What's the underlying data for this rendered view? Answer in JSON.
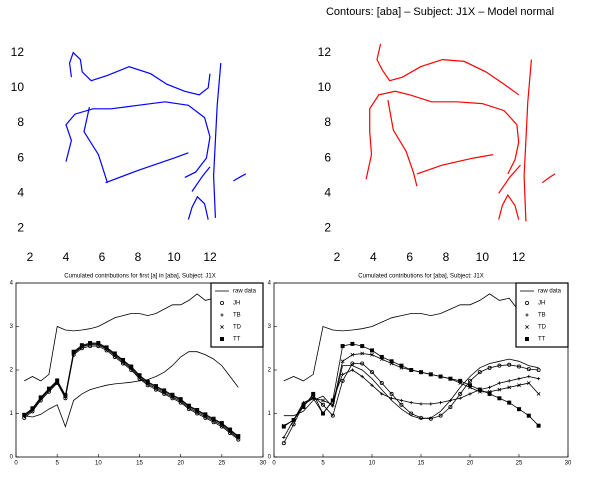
{
  "chart_data": [
    {
      "type": "line",
      "xlim": [
        2,
        14
      ],
      "ylim": [
        1,
        13
      ],
      "xticks": [
        2,
        4,
        6,
        8,
        10,
        12
      ],
      "yticks": [
        2,
        4,
        6,
        8,
        10,
        12
      ],
      "series": [
        {
          "color": "#0000ff",
          "x": [
            4.3,
            4.2,
            4.4,
            4.8,
            4.9,
            5.4,
            6.3,
            7.5,
            8.7,
            9.6,
            10.6,
            11.4,
            11.9,
            12.0
          ],
          "values": [
            10.6,
            11.4,
            12.0,
            11.6,
            10.9,
            10.4,
            10.7,
            11.2,
            10.8,
            10.2,
            9.8,
            9.6,
            10.0,
            10.8
          ]
        },
        {
          "color": "#0000ff",
          "x": [
            4.0,
            4.3,
            4.0,
            4.5,
            5.5,
            6.5,
            8.0,
            9.5,
            10.8,
            11.7,
            12.0,
            11.8,
            11.2,
            10.6
          ],
          "values": [
            5.8,
            7.0,
            7.9,
            8.5,
            8.8,
            8.8,
            9.0,
            9.2,
            9.0,
            8.3,
            7.2,
            6.0,
            5.2,
            4.9
          ]
        },
        {
          "color": "#0000ff",
          "x": [
            6.2,
            8.0,
            10.0,
            10.8
          ],
          "values": [
            4.6,
            5.3,
            6.0,
            6.3
          ]
        },
        {
          "color": "#0000ff",
          "x": [
            5.3,
            5.0,
            5.8,
            6.3
          ],
          "values": [
            8.9,
            7.5,
            6.2,
            4.6
          ]
        },
        {
          "color": "#0000ff",
          "x": [
            12.6,
            12.4,
            12.3,
            12.2,
            12.3
          ],
          "values": [
            11.4,
            9.0,
            7.0,
            5.0,
            2.6
          ]
        },
        {
          "color": "#0000ff",
          "x": [
            10.8,
            11.0,
            11.3,
            11.7,
            11.9
          ],
          "values": [
            2.5,
            3.2,
            3.8,
            3.4,
            2.5
          ]
        },
        {
          "color": "#0000ff",
          "x": [
            11.0,
            11.6,
            12.0
          ],
          "values": [
            4.1,
            5.0,
            5.5
          ]
        },
        {
          "color": "#0000ff",
          "x": [
            13.3,
            13.8,
            14.0
          ],
          "values": [
            4.7,
            5.0,
            5.1
          ]
        }
      ]
    },
    {
      "type": "line",
      "title": "Contours: [aba] – Subject: J1X – Model normal",
      "xlim": [
        2,
        14
      ],
      "ylim": [
        1,
        13
      ],
      "xticks": [
        2,
        4,
        6,
        8,
        10,
        12
      ],
      "yticks": [
        2,
        4,
        6,
        8,
        10,
        12
      ],
      "series": [
        {
          "color": "#ff0000",
          "x": [
            4.4,
            4.2,
            4.5,
            4.9,
            5.6,
            6.6,
            7.8,
            9.0,
            10.2,
            11.2,
            12.0
          ],
          "values": [
            12.5,
            11.6,
            11.0,
            10.4,
            10.6,
            11.2,
            11.6,
            11.5,
            10.9,
            10.2,
            9.6
          ]
        },
        {
          "color": "#ff0000",
          "x": [
            3.6,
            3.9,
            3.8,
            3.8,
            4.3,
            5.2,
            6.0,
            7.2,
            8.6,
            10.0,
            11.2,
            11.9,
            12.0,
            11.8,
            11.4
          ],
          "values": [
            4.8,
            6.2,
            7.5,
            8.8,
            9.6,
            9.8,
            9.6,
            9.2,
            9.2,
            9.1,
            8.7,
            7.9,
            6.9,
            5.9,
            5.1
          ]
        },
        {
          "color": "#ff0000",
          "x": [
            6.4,
            7.8,
            9.5,
            10.6
          ],
          "values": [
            5.1,
            5.6,
            6.0,
            6.2
          ]
        },
        {
          "color": "#ff0000",
          "x": [
            4.8,
            5.1,
            5.8,
            6.2,
            6.4
          ],
          "values": [
            9.3,
            7.6,
            6.4,
            5.2,
            4.4
          ]
        },
        {
          "color": "#ff0000",
          "x": [
            12.7,
            12.5,
            12.4,
            12.3,
            12.4
          ],
          "values": [
            11.6,
            9.2,
            7.0,
            5.0,
            2.4
          ]
        },
        {
          "color": "#ff0000",
          "x": [
            10.9,
            11.1,
            11.4,
            11.8,
            12.0
          ],
          "values": [
            2.5,
            3.3,
            3.9,
            3.3,
            2.5
          ]
        },
        {
          "color": "#ff0000",
          "x": [
            10.9,
            11.5,
            12.1
          ],
          "values": [
            4.0,
            4.9,
            5.6
          ]
        },
        {
          "color": "#ff0000",
          "x": [
            13.3,
            13.7,
            14.0
          ],
          "values": [
            4.6,
            4.9,
            5.1
          ]
        }
      ]
    },
    {
      "type": "line",
      "title": "Cumulated contributions for first [a] in [aba], Subject: J1X",
      "box": true,
      "legend": "upper right",
      "xlim": [
        0,
        30
      ],
      "ylim": [
        0,
        4
      ],
      "xticks": [
        0,
        5,
        10,
        15,
        20,
        25,
        30
      ],
      "yticks": [
        0,
        1,
        2,
        3,
        4
      ],
      "x": [
        1,
        2,
        3,
        4,
        5,
        6,
        7,
        8,
        9,
        10,
        11,
        12,
        13,
        14,
        15,
        16,
        17,
        18,
        19,
        20,
        21,
        22,
        23,
        24,
        25,
        26,
        27
      ],
      "series": [
        {
          "name": "raw data",
          "color": "#000000",
          "values": [
            1.75,
            1.85,
            1.75,
            1.9,
            3.0,
            2.92,
            2.9,
            2.92,
            2.95,
            3.0,
            3.1,
            3.2,
            3.25,
            3.3,
            3.3,
            3.25,
            3.3,
            3.4,
            3.5,
            3.5,
            3.6,
            3.75,
            3.6,
            3.65,
            3.35,
            3.1,
            2.9
          ]
        },
        {
          "color": "#000000",
          "values": [
            0.95,
            0.92,
            0.98,
            1.1,
            1.2,
            0.7,
            1.3,
            1.45,
            1.55,
            1.6,
            1.65,
            1.68,
            1.7,
            1.72,
            1.75,
            1.78,
            1.85,
            1.95,
            2.1,
            2.3,
            2.42,
            2.42,
            2.35,
            2.25,
            2.1,
            1.85,
            1.6
          ]
        },
        {
          "name": "JH",
          "color": "#000000",
          "marker": "circle",
          "values": [
            0.9,
            1.05,
            1.3,
            1.5,
            1.7,
            1.35,
            2.35,
            2.5,
            2.55,
            2.55,
            2.45,
            2.3,
            2.15,
            2.0,
            1.8,
            1.65,
            1.55,
            1.45,
            1.35,
            1.25,
            1.1,
            1.0,
            0.9,
            0.8,
            0.7,
            0.55,
            0.4
          ]
        },
        {
          "name": "TB",
          "color": "#000000",
          "marker": "plus",
          "values": [
            0.93,
            1.08,
            1.33,
            1.53,
            1.72,
            1.38,
            2.38,
            2.53,
            2.58,
            2.58,
            2.48,
            2.33,
            2.18,
            2.03,
            1.83,
            1.68,
            1.58,
            1.48,
            1.38,
            1.28,
            1.13,
            1.03,
            0.93,
            0.83,
            0.73,
            0.58,
            0.43
          ]
        },
        {
          "name": "TD",
          "color": "#000000",
          "marker": "cross",
          "values": [
            0.95,
            1.1,
            1.35,
            1.55,
            1.74,
            1.4,
            2.4,
            2.55,
            2.6,
            2.6,
            2.5,
            2.36,
            2.21,
            2.06,
            1.86,
            1.71,
            1.61,
            1.51,
            1.41,
            1.31,
            1.16,
            1.06,
            0.96,
            0.86,
            0.76,
            0.61,
            0.46
          ]
        },
        {
          "name": "TT",
          "color": "#000000",
          "marker": "square",
          "values": [
            0.97,
            1.12,
            1.37,
            1.57,
            1.76,
            1.42,
            2.42,
            2.57,
            2.62,
            2.62,
            2.52,
            2.38,
            2.23,
            2.08,
            1.88,
            1.73,
            1.63,
            1.53,
            1.43,
            1.33,
            1.18,
            1.08,
            0.98,
            0.88,
            0.78,
            0.63,
            0.48
          ]
        }
      ]
    },
    {
      "type": "line",
      "title": "Cumulated contributions for [aba], Subject: J1X",
      "box": true,
      "legend": "upper right",
      "xlim": [
        0,
        30
      ],
      "ylim": [
        0,
        4
      ],
      "xticks": [
        0,
        5,
        10,
        15,
        20,
        25,
        30
      ],
      "yticks": [
        0,
        1,
        2,
        3,
        4
      ],
      "x": [
        1,
        2,
        3,
        4,
        5,
        6,
        7,
        8,
        9,
        10,
        11,
        12,
        13,
        14,
        15,
        16,
        17,
        18,
        19,
        20,
        21,
        22,
        23,
        24,
        25,
        26,
        27
      ],
      "series": [
        {
          "name": "raw data",
          "color": "#000000",
          "values": [
            1.75,
            1.85,
            1.75,
            1.9,
            3.0,
            2.92,
            2.9,
            2.92,
            2.95,
            3.0,
            3.1,
            3.2,
            3.25,
            3.3,
            3.3,
            3.25,
            3.3,
            3.4,
            3.5,
            3.5,
            3.6,
            3.75,
            3.6,
            3.65,
            3.35,
            3.1,
            2.9
          ]
        },
        {
          "color": "#000000",
          "values": [
            0.95,
            0.95,
            1.05,
            1.3,
            1.4,
            1.15,
            2.1,
            2.1,
            2.0,
            1.8,
            1.55,
            1.3,
            1.1,
            0.95,
            0.88,
            0.9,
            1.05,
            1.3,
            1.6,
            1.85,
            2.05,
            2.15,
            2.2,
            2.25,
            2.2,
            2.1,
            2.05
          ]
        },
        {
          "name": "JH",
          "color": "#000000",
          "marker": "circle",
          "values": [
            0.32,
            0.75,
            1.2,
            1.4,
            1.2,
            0.95,
            1.75,
            2.15,
            2.15,
            1.95,
            1.7,
            1.45,
            1.2,
            1.0,
            0.9,
            0.88,
            0.95,
            1.15,
            1.45,
            1.75,
            1.95,
            2.05,
            2.1,
            2.12,
            2.08,
            2.02,
            2.0
          ]
        },
        {
          "name": "TB",
          "color": "#000000",
          "marker": "plus",
          "values": [
            0.45,
            0.85,
            1.25,
            1.35,
            1.0,
            1.3,
            1.9,
            2.0,
            1.85,
            1.65,
            1.45,
            1.35,
            1.3,
            1.25,
            1.22,
            1.22,
            1.25,
            1.3,
            1.35,
            1.45,
            1.55,
            1.6,
            1.7,
            1.75,
            1.8,
            1.85,
            1.8
          ]
        },
        {
          "name": "TD",
          "color": "#000000",
          "marker": "cross",
          "values": [
            0.72,
            0.85,
            1.2,
            1.35,
            1.3,
            1.2,
            2.2,
            2.35,
            2.38,
            2.35,
            2.25,
            2.15,
            2.05,
            2.0,
            1.95,
            1.9,
            1.85,
            1.8,
            1.7,
            1.6,
            1.5,
            1.5,
            1.55,
            1.6,
            1.65,
            1.7,
            1.45
          ]
        },
        {
          "name": "TT",
          "color": "#000000",
          "marker": "square",
          "values": [
            0.7,
            0.85,
            1.15,
            1.45,
            1.0,
            1.3,
            2.55,
            2.6,
            2.55,
            2.45,
            2.3,
            2.2,
            2.1,
            2.0,
            1.95,
            1.9,
            1.85,
            1.8,
            1.75,
            1.65,
            1.55,
            1.45,
            1.35,
            1.25,
            1.1,
            0.95,
            0.72
          ]
        }
      ]
    }
  ]
}
